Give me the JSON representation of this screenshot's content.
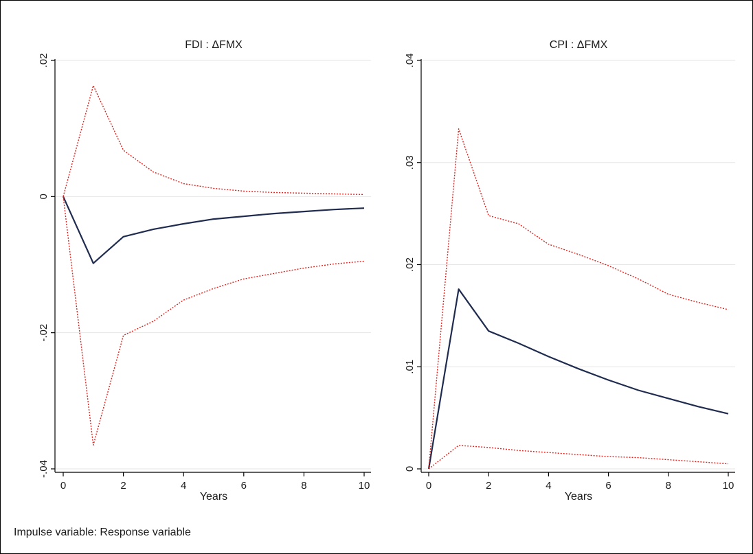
{
  "note": "Impulse variable: Response variable",
  "colors": {
    "response": "#1f2c4f",
    "ci": "#e0211c",
    "grid": "#e6e6e6",
    "axis": "#000000"
  },
  "chart_data": [
    {
      "type": "line",
      "title": "FDI : ΔFMX",
      "xlabel": "Years",
      "ylabel": "",
      "xlim": [
        0,
        10
      ],
      "ylim": [
        -0.04,
        0.02
      ],
      "x_ticks": [
        0,
        2,
        4,
        6,
        8,
        10
      ],
      "x_tick_labels": [
        "0",
        "2",
        "4",
        "6",
        "8",
        "10"
      ],
      "y_ticks": [
        -0.04,
        -0.02,
        0,
        0.02
      ],
      "y_tick_labels": [
        "-.04",
        "-.02",
        "0",
        ".02"
      ],
      "grid": true,
      "x": [
        0,
        1,
        2,
        3,
        4,
        5,
        6,
        7,
        8,
        9,
        10
      ],
      "series": [
        {
          "role": "response",
          "values": [
            0,
            -0.0098,
            -0.0059,
            -0.0048,
            -0.004,
            -0.0033,
            -0.0029,
            -0.0025,
            -0.0022,
            -0.0019,
            -0.0017
          ]
        },
        {
          "role": "upper",
          "values": [
            0,
            0.0163,
            0.0068,
            0.0036,
            0.0019,
            0.0012,
            0.0008,
            0.0006,
            0.0005,
            0.0004,
            0.0003
          ]
        },
        {
          "role": "lower",
          "values": [
            0,
            -0.0365,
            -0.0204,
            -0.0183,
            -0.0152,
            -0.0135,
            -0.0121,
            -0.0113,
            -0.0105,
            -0.0099,
            -0.0095
          ]
        }
      ]
    },
    {
      "type": "line",
      "title": "CPI : ΔFMX",
      "xlabel": "Years",
      "ylabel": "",
      "xlim": [
        0,
        10
      ],
      "ylim": [
        0,
        0.04
      ],
      "x_ticks": [
        0,
        2,
        4,
        6,
        8,
        10
      ],
      "x_tick_labels": [
        "0",
        "2",
        "4",
        "6",
        "8",
        "10"
      ],
      "y_ticks": [
        0,
        0.01,
        0.02,
        0.03,
        0.04
      ],
      "y_tick_labels": [
        "0",
        ".01",
        ".02",
        ".03",
        ".04"
      ],
      "grid": true,
      "x": [
        0,
        1,
        2,
        3,
        4,
        5,
        6,
        7,
        8,
        9,
        10
      ],
      "series": [
        {
          "role": "response",
          "values": [
            0,
            0.0176,
            0.0135,
            0.0123,
            0.011,
            0.0098,
            0.0087,
            0.0077,
            0.0069,
            0.0061,
            0.0054
          ]
        },
        {
          "role": "upper",
          "values": [
            0,
            0.0333,
            0.0248,
            0.024,
            0.022,
            0.021,
            0.0199,
            0.0186,
            0.0171,
            0.0163,
            0.0156
          ]
        },
        {
          "role": "lower",
          "values": [
            0,
            0.0023,
            0.0021,
            0.0018,
            0.0016,
            0.0014,
            0.0012,
            0.0011,
            0.0009,
            0.0007,
            0.0005
          ]
        }
      ]
    }
  ]
}
